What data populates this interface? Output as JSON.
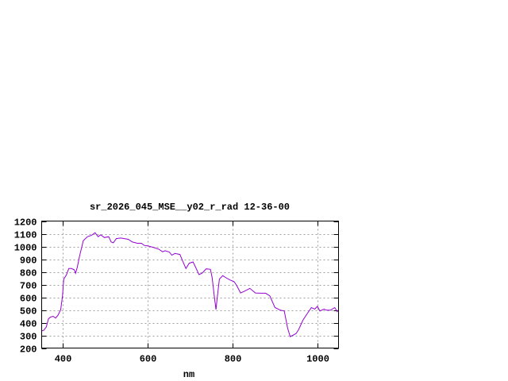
{
  "chart_data": {
    "type": "line",
    "title": "sr_2026_045_MSE__y02_r_rad 12-36-00",
    "xlabel": "nm",
    "ylabel": "",
    "xlim": [
      350,
      1050
    ],
    "ylim": [
      200,
      1200
    ],
    "xticks": [
      400,
      600,
      800,
      1000
    ],
    "yticks": [
      200,
      300,
      400,
      500,
      600,
      700,
      800,
      900,
      1000,
      1100,
      1200
    ],
    "grid": true,
    "line_color": "#9400d3",
    "series": [
      {
        "x": [
          350,
          355,
          361,
          366,
          371,
          377,
          383,
          389,
          395,
          399,
          402,
          408,
          414,
          420,
          427,
          430,
          434,
          439,
          448,
          458,
          467,
          476,
          483,
          489,
          498,
          508,
          514,
          519,
          526,
          536,
          545,
          554,
          564,
          576,
          585,
          592,
          601,
          613,
          626,
          635,
          641,
          651,
          657,
          664,
          676,
          682,
          690,
          698,
          707,
          713,
          721,
          729,
          738,
          748,
          752,
          757,
          761,
          764,
          769,
          777,
          785,
          794,
          804,
          810,
          819,
          829,
          841,
          854,
          866,
          878,
          888,
          900,
          913,
          922,
          930,
          936,
          944,
          950,
          956,
          966,
          975,
          986,
          994,
          1000,
          1006,
          1016,
          1022,
          1031,
          1041,
          1047,
          1050
        ],
        "y": [
          335,
          340,
          367,
          430,
          444,
          450,
          436,
          461,
          503,
          607,
          743,
          774,
          826,
          826,
          816,
          789,
          837,
          920,
          1045,
          1077,
          1087,
          1108,
          1077,
          1091,
          1070,
          1077,
          1035,
          1029,
          1062,
          1066,
          1062,
          1056,
          1035,
          1025,
          1025,
          1008,
          1004,
          993,
          979,
          958,
          966,
          956,
          931,
          945,
          937,
          889,
          826,
          868,
          878,
          837,
          778,
          791,
          824,
          820,
          753,
          607,
          503,
          597,
          743,
          770,
          753,
          736,
          722,
          691,
          634,
          649,
          670,
          634,
          632,
          632,
          611,
          519,
          498,
          492,
          356,
          290,
          304,
          315,
          346,
          419,
          465,
          519,
          507,
          528,
          492,
          507,
          498,
          498,
          519,
          486,
          503
        ]
      }
    ]
  }
}
